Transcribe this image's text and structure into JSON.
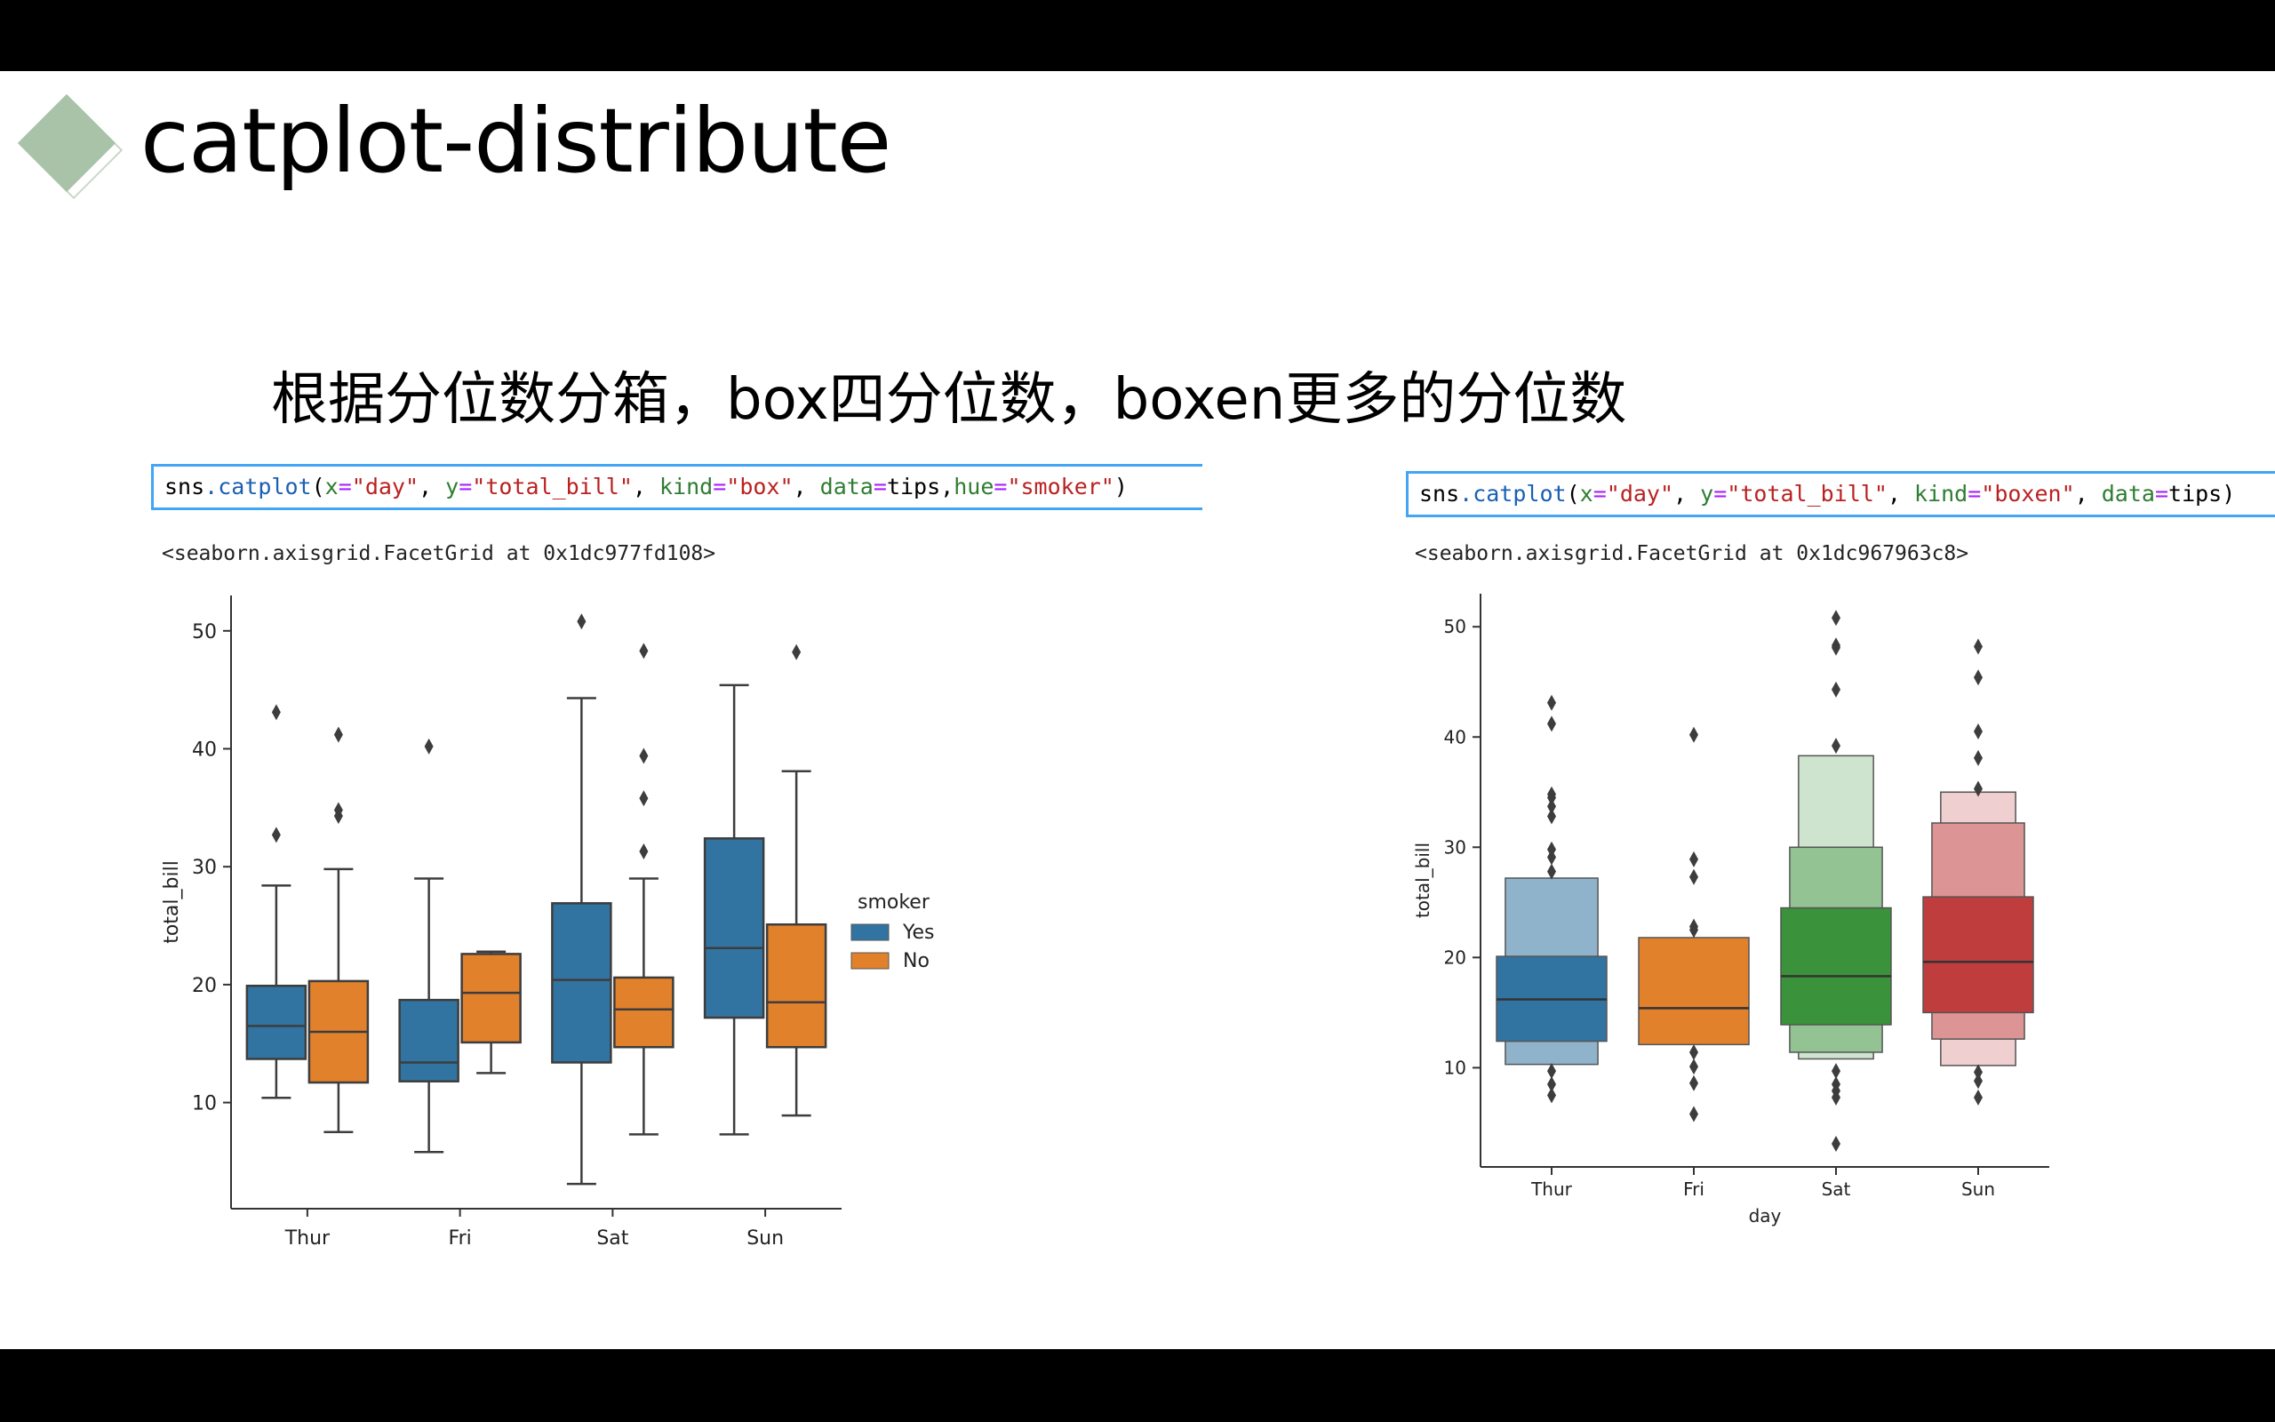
{
  "slide": {
    "title": "catplot-distribute",
    "subtitle": "根据分位数分箱，box四分位数，boxen更多的分位数"
  },
  "left_cell": {
    "code_prefix": "sns",
    "code_fn": ".catplot",
    "code_args": [
      {
        "t": "par",
        "v": "("
      },
      {
        "t": "kw",
        "v": "x"
      },
      {
        "t": "op",
        "v": "="
      },
      {
        "t": "str",
        "v": "\"day\""
      },
      {
        "t": "par",
        "v": ", "
      },
      {
        "t": "kw",
        "v": "y"
      },
      {
        "t": "op",
        "v": "="
      },
      {
        "t": "str",
        "v": "\"total_bill\""
      },
      {
        "t": "par",
        "v": ", "
      },
      {
        "t": "kw",
        "v": "kind"
      },
      {
        "t": "op",
        "v": "="
      },
      {
        "t": "str",
        "v": "\"box\""
      },
      {
        "t": "par",
        "v": ", "
      },
      {
        "t": "kw",
        "v": "data"
      },
      {
        "t": "op",
        "v": "="
      },
      {
        "t": "name",
        "v": "tips"
      },
      {
        "t": "par",
        "v": ","
      },
      {
        "t": "kw",
        "v": "hue"
      },
      {
        "t": "op",
        "v": "="
      },
      {
        "t": "str",
        "v": "\"smoker\""
      },
      {
        "t": "par",
        "v": ")"
      }
    ],
    "output": "<seaborn.axisgrid.FacetGrid at 0x1dc977fd108>"
  },
  "right_cell": {
    "code_prefix": "sns",
    "code_fn": ".catplot",
    "code_args": [
      {
        "t": "par",
        "v": "("
      },
      {
        "t": "kw",
        "v": "x"
      },
      {
        "t": "op",
        "v": "="
      },
      {
        "t": "str",
        "v": "\"day\""
      },
      {
        "t": "par",
        "v": ", "
      },
      {
        "t": "kw",
        "v": "y"
      },
      {
        "t": "op",
        "v": "="
      },
      {
        "t": "str",
        "v": "\"total_bill\""
      },
      {
        "t": "par",
        "v": ", "
      },
      {
        "t": "kw",
        "v": "kind"
      },
      {
        "t": "op",
        "v": "="
      },
      {
        "t": "str",
        "v": "\"boxen\""
      },
      {
        "t": "par",
        "v": ", "
      },
      {
        "t": "kw",
        "v": "data"
      },
      {
        "t": "op",
        "v": "="
      },
      {
        "t": "name",
        "v": "tips"
      },
      {
        "t": "par",
        "v": ")"
      }
    ],
    "output": "<seaborn.axisgrid.FacetGrid at 0x1dc967963c8>"
  },
  "chart_data": [
    {
      "type": "box",
      "categories": [
        "Thur",
        "Fri",
        "Sat",
        "Sun"
      ],
      "xlabel": "",
      "ylabel": "total_bill",
      "ylim": [
        1,
        53
      ],
      "yticks": [
        10,
        20,
        30,
        40,
        50
      ],
      "legend": {
        "title": "smoker",
        "placement": "right",
        "entries": [
          "Yes",
          "No"
        ]
      },
      "series": [
        {
          "name": "Yes",
          "color": "#3274a1",
          "boxes": [
            {
              "q1": 13.7,
              "med": 16.5,
              "q3": 19.9,
              "lo": 10.4,
              "hi": 28.4,
              "outliers": [
                32.7,
                43.1
              ]
            },
            {
              "q1": 11.8,
              "med": 13.4,
              "q3": 18.7,
              "lo": 5.8,
              "hi": 29.0,
              "outliers": [
                40.2
              ]
            },
            {
              "q1": 13.4,
              "med": 20.4,
              "q3": 26.9,
              "lo": 3.1,
              "hi": 44.3,
              "outliers": [
                50.8
              ]
            },
            {
              "q1": 17.2,
              "med": 23.1,
              "q3": 32.4,
              "lo": 7.3,
              "hi": 45.4,
              "outliers": []
            }
          ]
        },
        {
          "name": "No",
          "color": "#e1812c",
          "boxes": [
            {
              "q1": 11.7,
              "med": 16.0,
              "q3": 20.3,
              "lo": 7.5,
              "hi": 29.8,
              "outliers": [
                34.3,
                34.8,
                41.2
              ]
            },
            {
              "q1": 15.1,
              "med": 19.3,
              "q3": 22.6,
              "lo": 12.5,
              "hi": 22.8,
              "outliers": []
            },
            {
              "q1": 14.7,
              "med": 17.9,
              "q3": 20.6,
              "lo": 7.3,
              "hi": 29.0,
              "outliers": [
                31.3,
                35.8,
                39.4,
                48.3
              ]
            },
            {
              "q1": 14.7,
              "med": 18.5,
              "q3": 25.1,
              "lo": 8.9,
              "hi": 38.1,
              "outliers": [
                48.2
              ]
            }
          ]
        }
      ]
    },
    {
      "type": "boxen",
      "categories": [
        "Thur",
        "Fri",
        "Sat",
        "Sun"
      ],
      "xlabel": "day",
      "ylabel": "total_bill",
      "ylim": [
        1,
        53
      ],
      "yticks": [
        10,
        20,
        30,
        40,
        50
      ],
      "groups": [
        {
          "color": "#3274a1",
          "median": 16.2,
          "levels": [
            [
              12.4,
              20.1
            ],
            [
              10.3,
              27.2
            ]
          ],
          "outliers": [
            7.5,
            8.5,
            9.7,
            27.8,
            29.1,
            29.8,
            32.8,
            33.7,
            34.5,
            34.8,
            41.2,
            43.1
          ]
        },
        {
          "color": "#e1812c",
          "median": 15.4,
          "levels": [
            [
              12.1,
              21.8
            ]
          ],
          "outliers": [
            5.8,
            8.6,
            10.1,
            11.4,
            22.5,
            22.8,
            27.3,
            28.9,
            40.2
          ]
        },
        {
          "color": "#3a923a",
          "median": 18.3,
          "levels": [
            [
              13.9,
              24.5
            ],
            [
              11.4,
              30.0
            ],
            [
              10.8,
              38.3
            ]
          ],
          "outliers": [
            3.1,
            7.3,
            7.9,
            8.5,
            9.7,
            39.2,
            44.3,
            48.1,
            48.3,
            50.8
          ]
        },
        {
          "color": "#c03d3e",
          "median": 19.6,
          "levels": [
            [
              15.0,
              25.5
            ],
            [
              12.6,
              32.2
            ],
            [
              10.2,
              35.0
            ]
          ],
          "outliers": [
            7.3,
            8.8,
            9.6,
            35.3,
            38.1,
            40.5,
            45.4,
            48.2
          ]
        }
      ]
    }
  ]
}
